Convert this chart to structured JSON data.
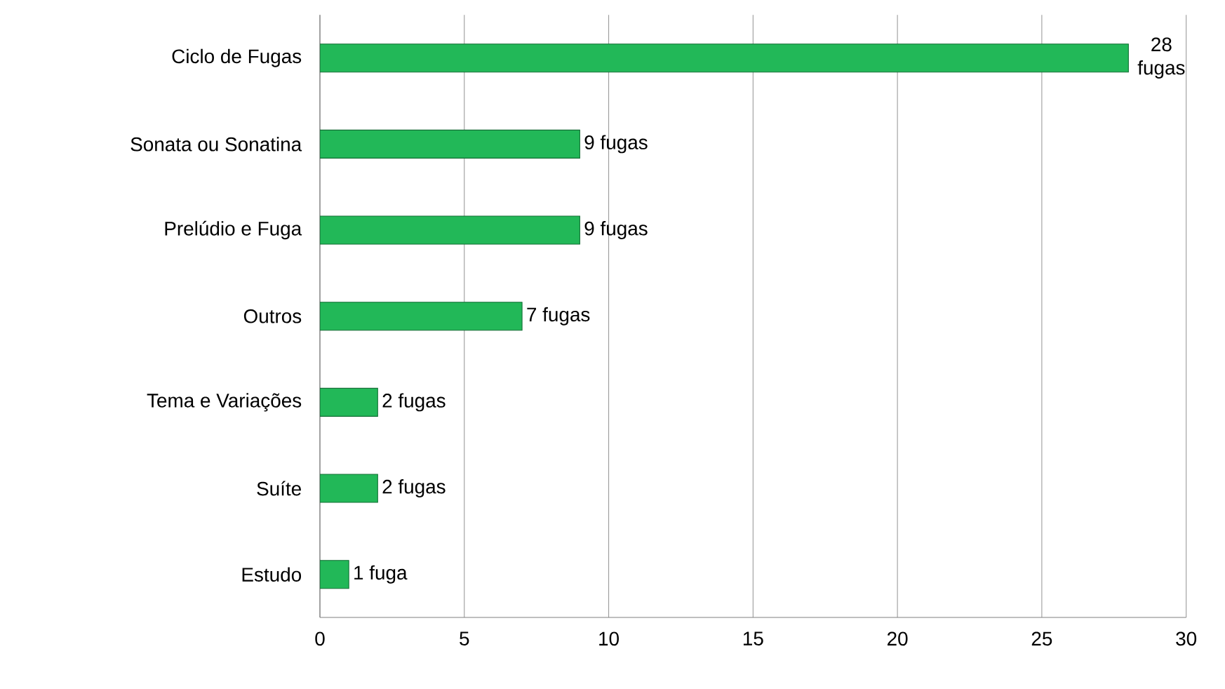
{
  "chart_data": {
    "type": "bar",
    "orientation": "horizontal",
    "categories": [
      "Ciclo de Fugas",
      "Sonata ou Sonatina",
      "Prelúdio e Fuga",
      "Outros",
      "Tema e Variações",
      "Suíte",
      "Estudo"
    ],
    "values": [
      28,
      9,
      9,
      7,
      2,
      2,
      1
    ],
    "value_labels": [
      "28 fugas",
      "9 fugas",
      "9 fugas",
      "7 fugas",
      "2 fugas",
      "2 fugas",
      "1 fuga"
    ],
    "color": "#22b858",
    "xlim": [
      0,
      30
    ],
    "xticks": [
      0,
      5,
      10,
      15,
      20,
      25,
      30
    ],
    "grid": "x"
  }
}
